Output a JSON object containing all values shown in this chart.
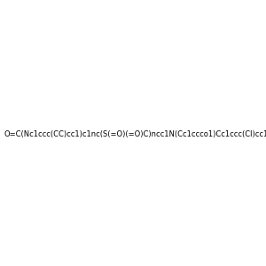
{
  "smiles": "O=C(Nc1ccc(CC)cc1)c1nc(S(=O)(=O)C)ncc1N(Cc1ccco1)Cc1ccc(Cl)cc1",
  "image_size": 300,
  "background_color": "#e8e8e8"
}
